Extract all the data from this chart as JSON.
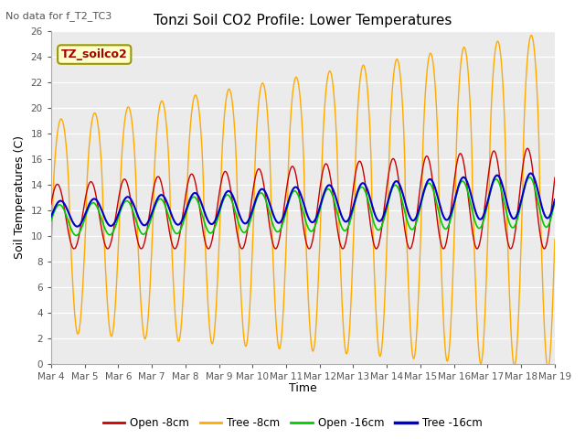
{
  "title": "Tonzi Soil CO2 Profile: Lower Temperatures",
  "subtitle": "No data for f_T2_TC3",
  "ylabel": "Soil Temperatures (C)",
  "xlabel": "Time",
  "annotation": "TZ_soilco2",
  "ylim": [
    0,
    26
  ],
  "yticks": [
    0,
    2,
    4,
    6,
    8,
    10,
    12,
    14,
    16,
    18,
    20,
    22,
    24,
    26
  ],
  "xtick_labels": [
    "Mar 4",
    "Mar 5",
    "Mar 6",
    "Mar 7",
    "Mar 8",
    "Mar 9",
    "Mar 10",
    "Mar 11",
    "Mar 12",
    "Mar 13",
    "Mar 14",
    "Mar 15",
    "Mar 16",
    "Mar 17",
    "Mar 18",
    "Mar 19"
  ],
  "legend_labels": [
    "Open -8cm",
    "Tree -8cm",
    "Open -16cm",
    "Tree -16cm"
  ],
  "line_colors": [
    "#cc0000",
    "#ffaa00",
    "#00cc00",
    "#0000cc"
  ],
  "bg_color": "#ffffff",
  "plot_bg": "#ebebeb",
  "n_days": 15,
  "pts_per_day": 120
}
